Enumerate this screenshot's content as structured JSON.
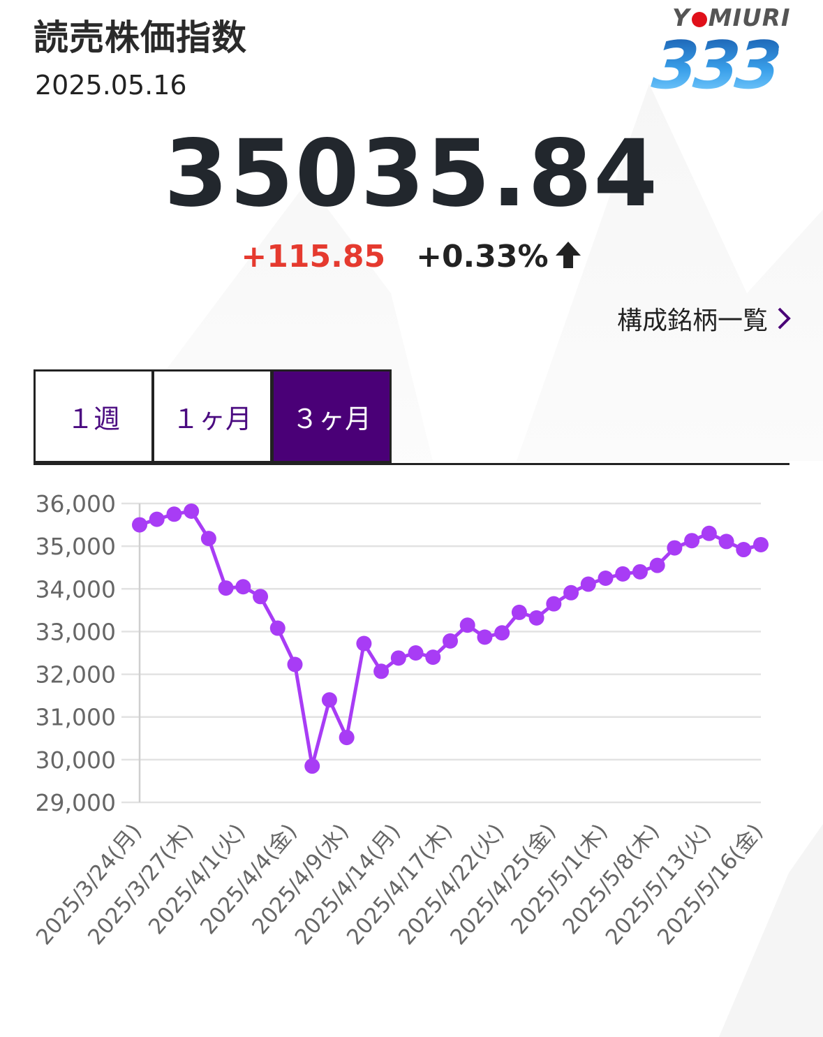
{
  "header": {
    "title": "読売株価指数",
    "date": "2025.05.16"
  },
  "logo": {
    "text_before": "Y",
    "text_after": "MIURI",
    "number": "333"
  },
  "quote": {
    "price": "35035.84",
    "change": "+115.85",
    "change_percent": "+0.33%"
  },
  "links": {
    "constituents": "構成銘柄一覧"
  },
  "tabs": [
    {
      "label": "１週",
      "active": false
    },
    {
      "label": "１ヶ月",
      "active": false
    },
    {
      "label": "３ヶ月",
      "active": true
    }
  ],
  "colors": {
    "accent": "#4a0077",
    "line": "#a83cf5",
    "up": "#e53a2f"
  },
  "chart_data": {
    "type": "line",
    "ylim": [
      29000,
      36000
    ],
    "yticks": [
      36000,
      35000,
      34000,
      33000,
      32000,
      31000,
      30000,
      29000
    ],
    "ytick_labels": [
      "36,000",
      "35,000",
      "34,000",
      "33,000",
      "32,000",
      "31,000",
      "30,000",
      "29,000"
    ],
    "xtick_labels": [
      "2025/3/24(月)",
      "2025/3/27(木)",
      "2025/4/1(火)",
      "2025/4/4(金)",
      "2025/4/9(水)",
      "2025/4/14(月)",
      "2025/4/17(木)",
      "2025/4/22(火)",
      "2025/4/25(金)",
      "2025/5/1(木)",
      "2025/5/8(木)",
      "2025/5/13(火)",
      "2025/5/16(金)"
    ],
    "xtick_index": [
      0,
      3,
      6,
      9,
      12,
      15,
      18,
      21,
      24,
      27,
      30,
      33,
      36
    ],
    "series": [
      {
        "values": [
          35500,
          35630,
          35750,
          35820,
          35180,
          34020,
          34050,
          33820,
          33080,
          32230,
          29850,
          31400,
          30520,
          32720,
          32070,
          32380,
          32500,
          32400,
          32780,
          33150,
          32870,
          32970,
          33450,
          33320,
          33650,
          33910,
          34110,
          34250,
          34350,
          34400,
          34550,
          34960,
          35130,
          35300,
          35110,
          34920,
          35035.84
        ]
      }
    ]
  }
}
